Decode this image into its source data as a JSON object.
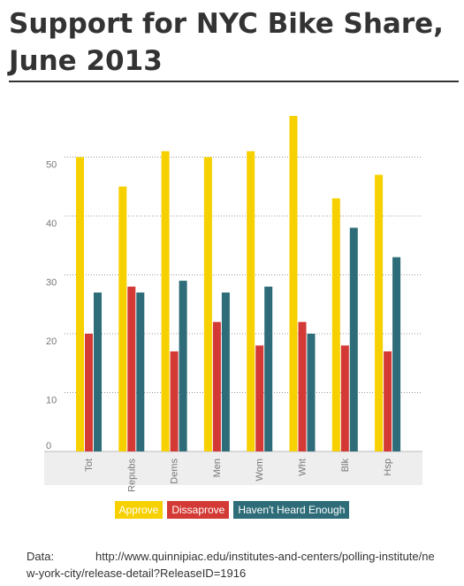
{
  "chart_data": {
    "type": "bar",
    "title": "Support for NYC Bike Share, June 2013",
    "categories": [
      "Tot",
      "Repubs",
      "Dems",
      "Men",
      "Wom",
      "Wht",
      "Blk",
      "Hsp"
    ],
    "series": [
      {
        "name": "Approve",
        "color": "#f7d000",
        "values": [
          50,
          45,
          51,
          50,
          51,
          57,
          43,
          47
        ]
      },
      {
        "name": "Dissaprove",
        "color": "#d43a35",
        "values": [
          20,
          28,
          17,
          22,
          18,
          22,
          18,
          17
        ]
      },
      {
        "name": "Haven't Heard Enough",
        "color": "#2d6c78",
        "values": [
          27,
          27,
          29,
          27,
          28,
          20,
          38,
          33
        ]
      }
    ],
    "ylim": [
      0,
      60
    ],
    "yticks": [
      0,
      10,
      20,
      30,
      40,
      50
    ],
    "grid": true,
    "source_label": "Data:",
    "source": "http://www.quinnipiac.edu/institutes-and-centers/polling-institute/new-york-city/release-detail?ReleaseID=1916"
  }
}
